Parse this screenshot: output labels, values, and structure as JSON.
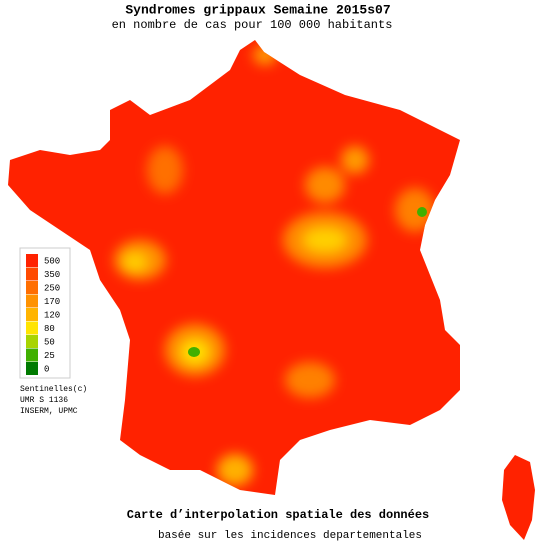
{
  "header": {
    "title": "Syndromes grippaux Semaine 2015s07",
    "subtitle": "en nombre de cas pour 100 000 habitants"
  },
  "legend": {
    "items": [
      {
        "value": 500,
        "color": "#ff2200"
      },
      {
        "value": 350,
        "color": "#ff4a00"
      },
      {
        "value": 250,
        "color": "#ff6e00"
      },
      {
        "value": 170,
        "color": "#ff9200"
      },
      {
        "value": 120,
        "color": "#ffb400"
      },
      {
        "value": 80,
        "color": "#ffe400"
      },
      {
        "value": 50,
        "color": "#a8d400"
      },
      {
        "value": 25,
        "color": "#40b000"
      },
      {
        "value": 0,
        "color": "#007a00"
      }
    ]
  },
  "credits": [
    "Sentinelles(c)",
    "UMR S 1136",
    "INSERM, UPMC"
  ],
  "footer": {
    "title": "Carte d’interpolation spatiale des données",
    "subtitle": "basée sur les incidences departementales"
  }
}
